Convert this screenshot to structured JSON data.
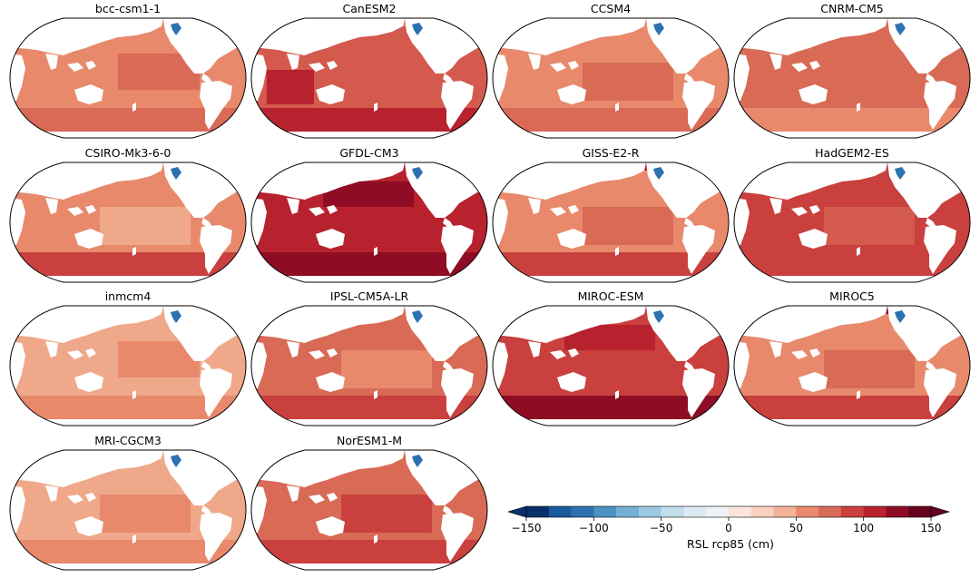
{
  "panels": [
    {
      "title": "bcc-csm1-1",
      "base": "#e8896c",
      "features": [
        {
          "kind": "east",
          "color": "#d86a56"
        },
        {
          "kind": "south",
          "color": "#d86a56"
        }
      ]
    },
    {
      "title": "CanESM2",
      "base": "#d35a4d",
      "features": [
        {
          "kind": "indian",
          "color": "#b7222e"
        },
        {
          "kind": "south",
          "color": "#b7222e"
        },
        {
          "kind": "arctic",
          "color": "#e8896c"
        }
      ]
    },
    {
      "title": "CCSM4",
      "base": "#e8896c",
      "features": [
        {
          "kind": "central",
          "color": "#d86a56"
        },
        {
          "kind": "south",
          "color": "#d86a56"
        }
      ]
    },
    {
      "title": "CNRM-CM5",
      "base": "#d86a56",
      "features": [
        {
          "kind": "south",
          "color": "#e8896c"
        }
      ]
    },
    {
      "title": "CSIRO-Mk3-6-0",
      "base": "#e8896c",
      "features": [
        {
          "kind": "central",
          "color": "#f0a88a"
        },
        {
          "kind": "south",
          "color": "#c9403e"
        }
      ]
    },
    {
      "title": "GFDL-CM3",
      "base": "#b7222e",
      "features": [
        {
          "kind": "north",
          "color": "#8e0d24"
        },
        {
          "kind": "south",
          "color": "#8e0d24"
        }
      ]
    },
    {
      "title": "GISS-E2-R",
      "base": "#e8896c",
      "features": [
        {
          "kind": "arctic",
          "color": "#b7222e"
        },
        {
          "kind": "central",
          "color": "#d86a56"
        },
        {
          "kind": "south",
          "color": "#c9403e"
        }
      ]
    },
    {
      "title": "HadGEM2-ES",
      "base": "#c9403e",
      "features": [
        {
          "kind": "central",
          "color": "#d35a4d"
        }
      ]
    },
    {
      "title": "inmcm4",
      "base": "#f0a88a",
      "features": [
        {
          "kind": "east",
          "color": "#e8896c"
        },
        {
          "kind": "south",
          "color": "#e8896c"
        }
      ]
    },
    {
      "title": "IPSL-CM5A-LR",
      "base": "#d86a56",
      "features": [
        {
          "kind": "central",
          "color": "#e8896c"
        },
        {
          "kind": "south",
          "color": "#c9403e"
        }
      ]
    },
    {
      "title": "MIROC-ESM",
      "base": "#c9403e",
      "features": [
        {
          "kind": "north",
          "color": "#b7222e"
        },
        {
          "kind": "south",
          "color": "#8e0d24"
        }
      ]
    },
    {
      "title": "MIROC5",
      "base": "#e8896c",
      "features": [
        {
          "kind": "arctic",
          "color": "#8e0d24"
        },
        {
          "kind": "central",
          "color": "#d86a56"
        },
        {
          "kind": "south",
          "color": "#c9403e"
        }
      ]
    },
    {
      "title": "MRI-CGCM3",
      "base": "#f0a88a",
      "features": [
        {
          "kind": "central",
          "color": "#e8896c"
        },
        {
          "kind": "south",
          "color": "#e8896c"
        }
      ]
    },
    {
      "title": "NorESM1-M",
      "base": "#d86a56",
      "features": [
        {
          "kind": "central",
          "color": "#c9403e"
        },
        {
          "kind": "south",
          "color": "#c9403e"
        }
      ]
    }
  ],
  "colorbar": {
    "label": "RSL rcp85 (cm)",
    "min": -150,
    "max": 150,
    "ticks": [
      {
        "value": -150,
        "label": "−150"
      },
      {
        "value": -100,
        "label": "−100"
      },
      {
        "value": -50,
        "label": "−50"
      },
      {
        "value": 0,
        "label": "0"
      },
      {
        "value": 50,
        "label": "50"
      },
      {
        "value": 100,
        "label": "100"
      },
      {
        "value": 150,
        "label": "150"
      }
    ],
    "colors": [
      "#08306b",
      "#1b5a9c",
      "#2c72b0",
      "#4a93c3",
      "#74b0d6",
      "#9ccae1",
      "#c1ddeb",
      "#dde9f0",
      "#eef2f5",
      "#fbe5da",
      "#f9d0bd",
      "#f4b399",
      "#e8896c",
      "#d86a56",
      "#c9403e",
      "#b7222e",
      "#8e0d24",
      "#67001f"
    ]
  }
}
